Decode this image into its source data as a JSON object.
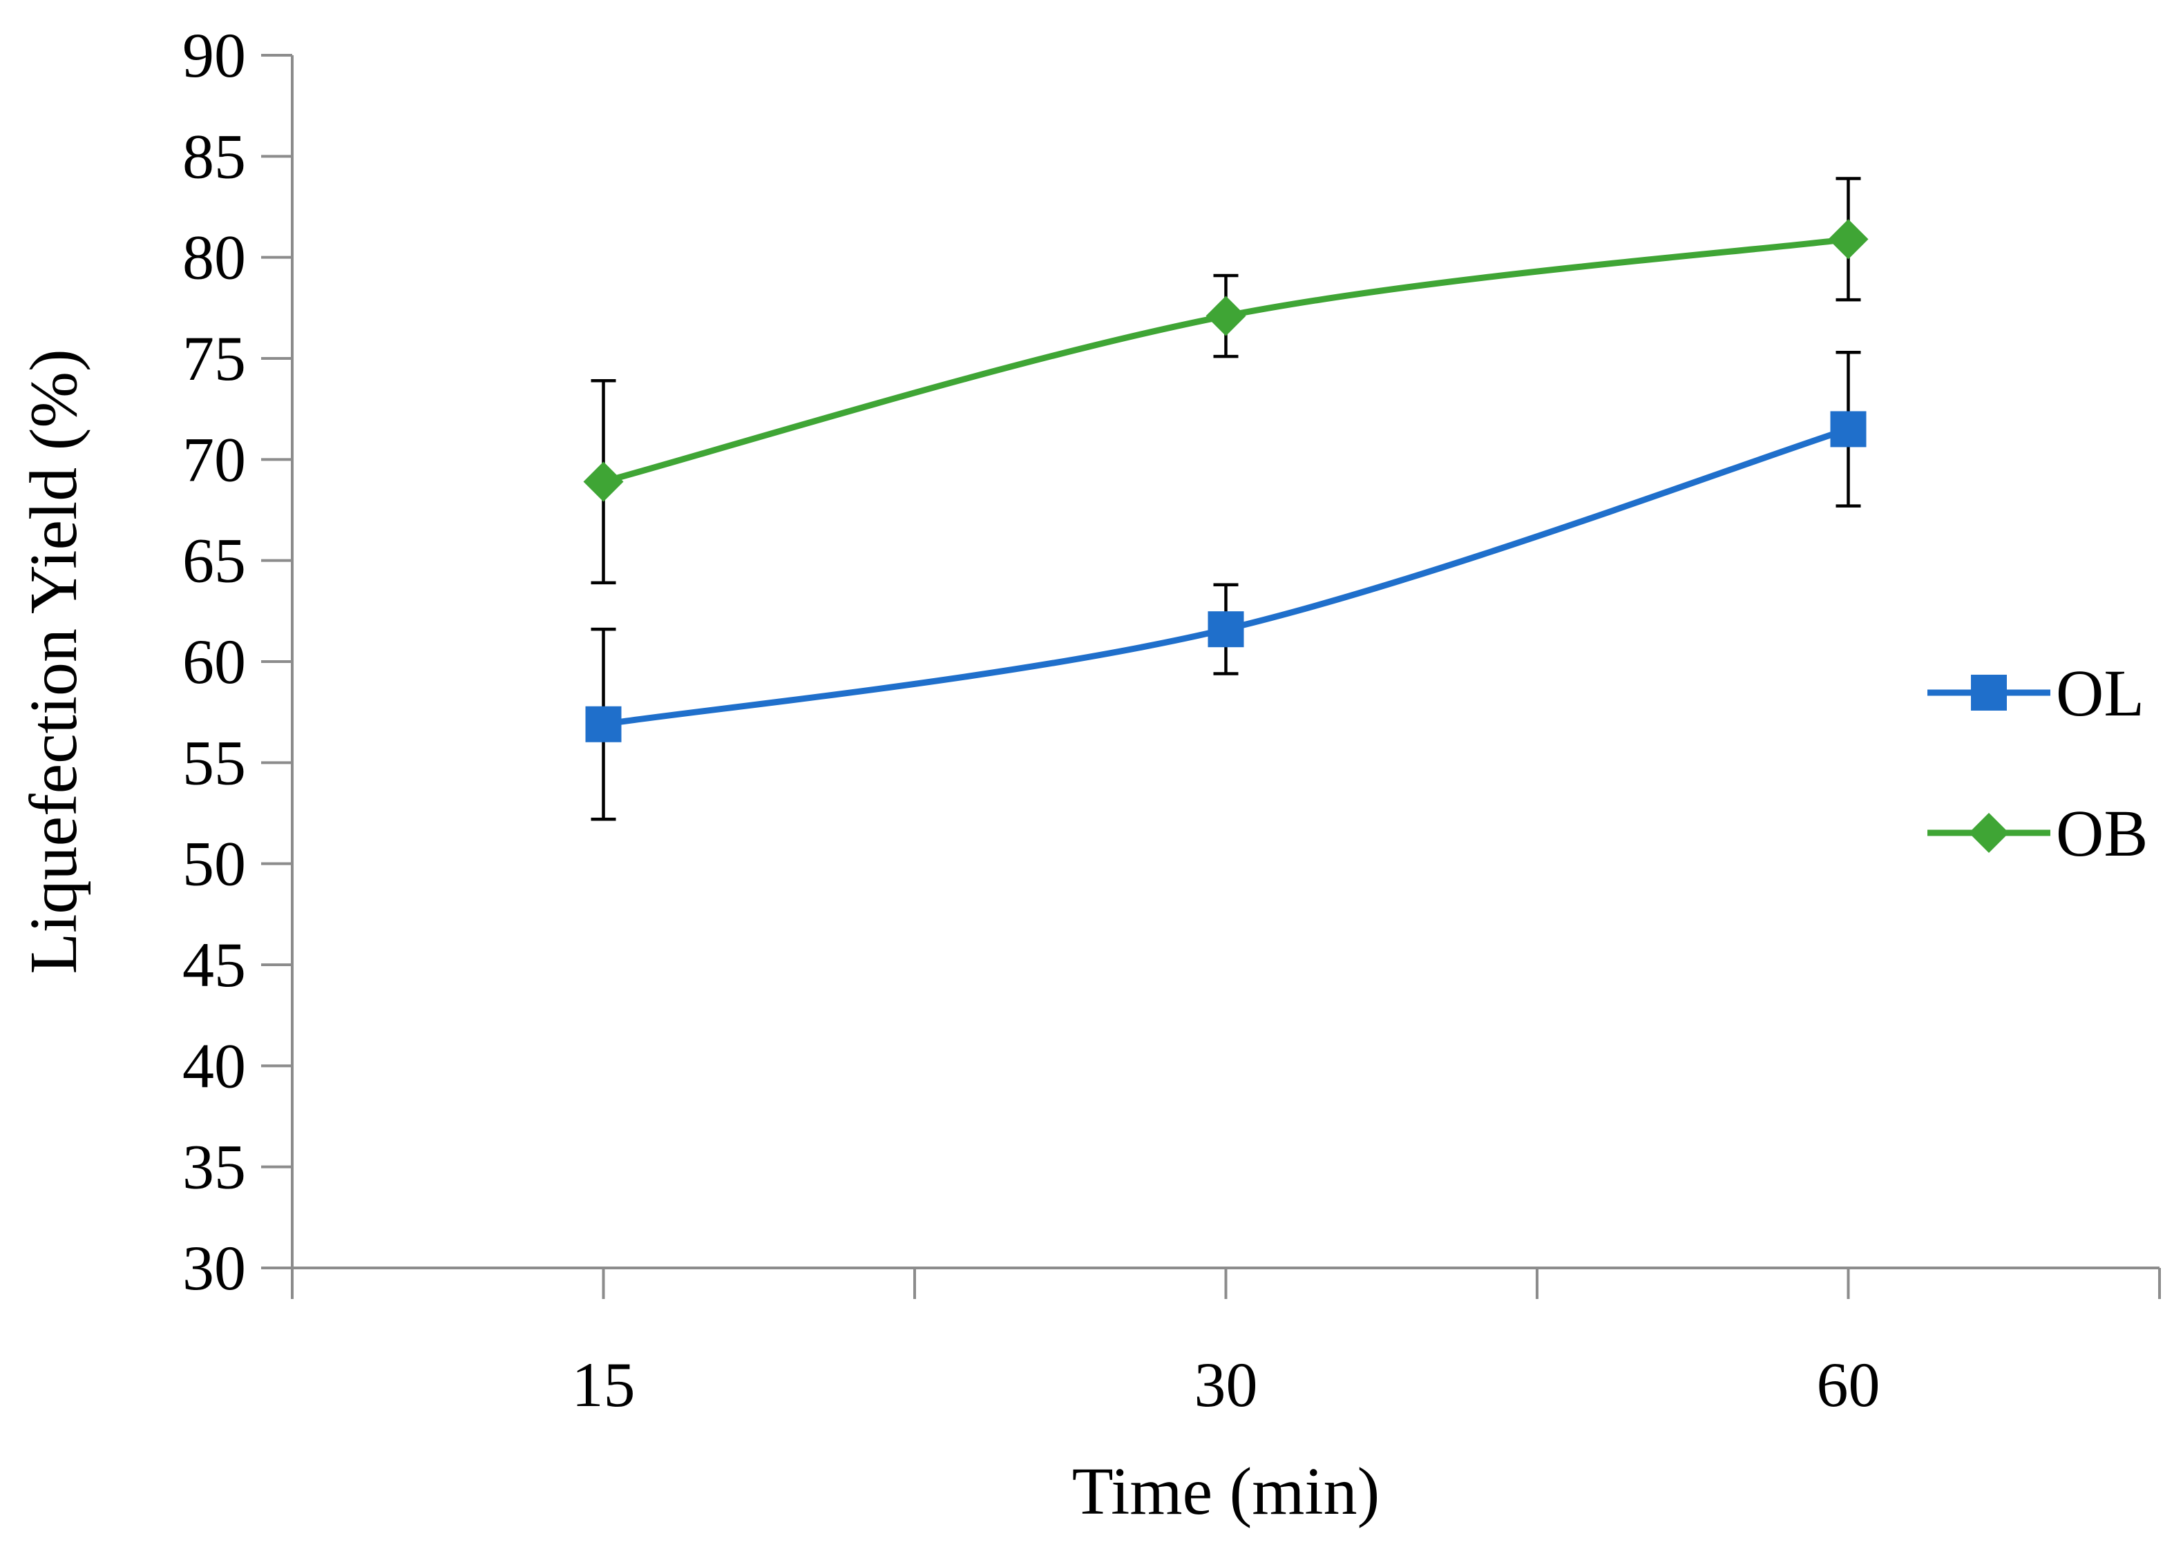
{
  "chart_data": {
    "type": "line",
    "title": "",
    "xlabel": "Time (min)",
    "ylabel": "Liquefection Yield (%)",
    "categories": [
      "15",
      "30",
      "60"
    ],
    "ylim": [
      30,
      90
    ],
    "y_ticks": [
      "30",
      "35",
      "40",
      "45",
      "50",
      "55",
      "60",
      "65",
      "70",
      "75",
      "80",
      "85",
      "90"
    ],
    "grid": false,
    "legend_position": "right",
    "series": [
      {
        "name": "OL",
        "values": [
          56.9,
          61.6,
          71.5
        ],
        "error_plus": [
          4.7,
          2.2,
          3.8
        ],
        "error_minus": [
          4.7,
          2.2,
          3.8
        ],
        "color": "#1f6fcb",
        "marker": "square"
      },
      {
        "name": "OB",
        "values": [
          68.9,
          77.1,
          80.9
        ],
        "error_plus": [
          5.0,
          2.0,
          3.0
        ],
        "error_minus": [
          5.0,
          2.0,
          3.0
        ],
        "color": "#3fa535",
        "marker": "diamond"
      }
    ]
  }
}
